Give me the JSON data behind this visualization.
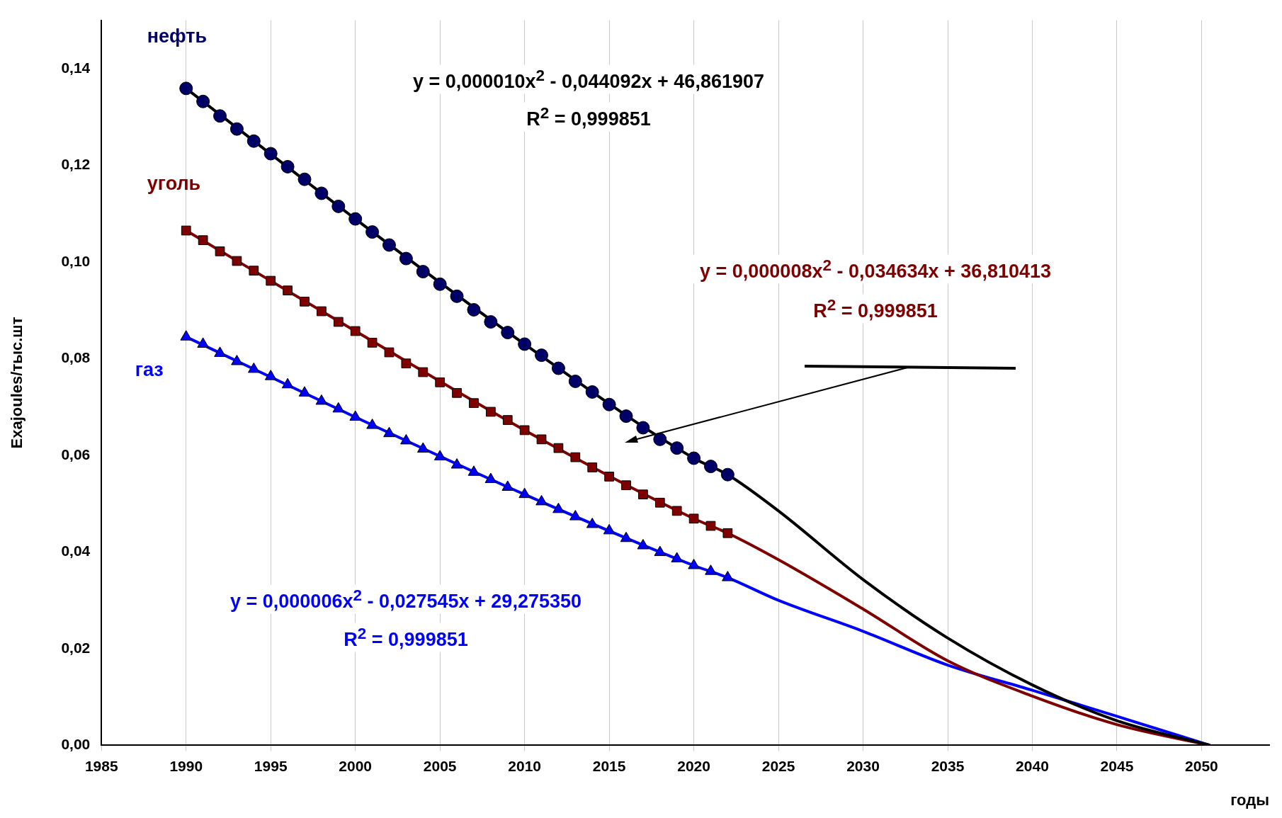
{
  "chart_data": {
    "type": "scatter",
    "xlabel": "годы",
    "ylabel": "Exajoules/тыс.шт",
    "xlim": [
      1985,
      2054
    ],
    "xticks": [
      1985,
      1990,
      1995,
      2000,
      2005,
      2010,
      2015,
      2020,
      2025,
      2030,
      2035,
      2040,
      2045,
      2050
    ],
    "ylim": [
      0,
      0.15
    ],
    "yticks": [
      {
        "value": 0,
        "label": "0,00"
      },
      {
        "value": 0.02,
        "label": "0,02"
      },
      {
        "value": 0.04,
        "label": "0,04"
      },
      {
        "value": 0.06,
        "label": "0,06"
      },
      {
        "value": 0.08,
        "label": "0,08"
      },
      {
        "value": 0.1,
        "label": "0,10"
      },
      {
        "value": 0.12,
        "label": "0,12"
      },
      {
        "value": 0.14,
        "label": "0,14"
      }
    ],
    "grid": "x",
    "legend": false,
    "series": [
      {
        "name": "нефть",
        "marker": "circle",
        "color": "#000066",
        "x": [
          1990,
          1991,
          1992,
          1993,
          1994,
          1995,
          1996,
          1997,
          1998,
          1999,
          2000,
          2001,
          2002,
          2003,
          2004,
          2005,
          2006,
          2007,
          2008,
          2009,
          2010,
          2011,
          2012,
          2013,
          2014,
          2015,
          2016,
          2017,
          2018,
          2019,
          2020,
          2021,
          2022
        ],
        "values": [
          0.1359,
          0.1332,
          0.1302,
          0.1275,
          0.125,
          0.1224,
          0.1197,
          0.1171,
          0.1142,
          0.1115,
          0.1089,
          0.1062,
          0.1035,
          0.1007,
          0.098,
          0.0954,
          0.0929,
          0.0901,
          0.0876,
          0.0854,
          0.083,
          0.0807,
          0.078,
          0.0753,
          0.0731,
          0.0705,
          0.0681,
          0.0657,
          0.0633,
          0.0615,
          0.0594,
          0.0577,
          0.056
        ]
      },
      {
        "name": "уголь",
        "marker": "square",
        "color": "#7f0000",
        "x": [
          1990,
          1991,
          1992,
          1993,
          1994,
          1995,
          1996,
          1997,
          1998,
          1999,
          2000,
          2001,
          2002,
          2003,
          2004,
          2005,
          2006,
          2007,
          2008,
          2009,
          2010,
          2011,
          2012,
          2013,
          2014,
          2015,
          2016,
          2017,
          2018,
          2019,
          2020,
          2021,
          2022
        ],
        "values": [
          0.1065,
          0.1045,
          0.1022,
          0.1002,
          0.0982,
          0.0961,
          0.0941,
          0.0918,
          0.0898,
          0.0876,
          0.0857,
          0.0833,
          0.0813,
          0.079,
          0.0772,
          0.0751,
          0.0729,
          0.0708,
          0.069,
          0.0673,
          0.0652,
          0.0633,
          0.0615,
          0.0596,
          0.0575,
          0.0556,
          0.0538,
          0.0519,
          0.0502,
          0.0485,
          0.0469,
          0.0454,
          0.0439
        ]
      },
      {
        "name": "газ",
        "marker": "triangle",
        "color": "#0000ff",
        "x": [
          1990,
          1991,
          1992,
          1993,
          1994,
          1995,
          1996,
          1997,
          1998,
          1999,
          2000,
          2001,
          2002,
          2003,
          2004,
          2005,
          2006,
          2007,
          2008,
          2009,
          2010,
          2011,
          2012,
          2013,
          2014,
          2015,
          2016,
          2017,
          2018,
          2019,
          2020,
          2021,
          2022
        ],
        "values": [
          0.0845,
          0.083,
          0.0811,
          0.0794,
          0.0778,
          0.0763,
          0.0746,
          0.0729,
          0.0712,
          0.0696,
          0.0679,
          0.0662,
          0.0645,
          0.063,
          0.0613,
          0.0597,
          0.058,
          0.0565,
          0.055,
          0.0534,
          0.0519,
          0.0504,
          0.0488,
          0.0473,
          0.0457,
          0.0444,
          0.0428,
          0.0413,
          0.0399,
          0.0386,
          0.0372,
          0.036,
          0.0347
        ]
      },
      {
        "type": "line",
        "marker": "none",
        "color": "#000000",
        "x": [
          1990,
          2000,
          2010,
          2020,
          2022,
          2025,
          2030,
          2035,
          2040,
          2045,
          2050.5
        ],
        "values": [
          0.1359,
          0.1089,
          0.083,
          0.0594,
          0.056,
          0.0485,
          0.0343,
          0.0222,
          0.0125,
          0.0051,
          0
        ]
      },
      {
        "type": "line",
        "marker": "none",
        "color": "#7f0000",
        "x": [
          1990,
          2000,
          2010,
          2020,
          2022,
          2025,
          2030,
          2035,
          2040,
          2045,
          2050.5
        ],
        "values": [
          0.1065,
          0.0857,
          0.0652,
          0.0469,
          0.0439,
          0.0384,
          0.0282,
          0.0175,
          0.0102,
          0.0043,
          0
        ]
      },
      {
        "type": "line",
        "marker": "none",
        "color": "#0000ff",
        "x": [
          1990,
          2000,
          2010,
          2020,
          2022,
          2025,
          2030,
          2035,
          2040,
          2045,
          2050.5
        ],
        "values": [
          0.0845,
          0.0679,
          0.0519,
          0.0372,
          0.0347,
          0.03,
          0.0236,
          0.0166,
          0.0114,
          0.006,
          0
        ]
      }
    ],
    "annotations": [
      "y = 0,000010x$^{2}$ - 0,044092x + 46,861907",
      "R$^{2}$ = 0,999851",
      "y = 0,000008x$^{2}$ - 0,034634x + 36,810413",
      "R$^{2}$ = 0,999851",
      "y = 0,000006x$^{2}$ - 0,027545x + 29,275350",
      "R$^{2}$ = 0,999851"
    ]
  }
}
